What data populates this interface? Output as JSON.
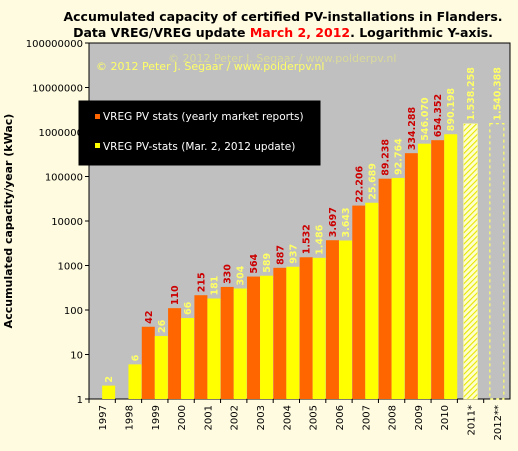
{
  "chart_data": {
    "type": "bar",
    "title_line1": "Accumulated  capacity of certified PV-installations  in Flanders.",
    "title_line2_prefix": "Data VREG/VREG update ",
    "title_line2_highlight": "March 2, 2012",
    "title_line2_suffix": ". Logarithmic  Y-axis.",
    "ylabel": "Accumulated capacity/year (kWac)",
    "yscale": "log",
    "ylim": [
      1,
      100000000
    ],
    "yticks": [
      {
        "value": 1,
        "label": "1"
      },
      {
        "value": 10,
        "label": "10"
      },
      {
        "value": 100,
        "label": "100"
      },
      {
        "value": 1000,
        "label": "1000"
      },
      {
        "value": 10000,
        "label": "10000"
      },
      {
        "value": 100000,
        "label": "100000"
      },
      {
        "value": 1000000,
        "label": "1000000"
      },
      {
        "value": 10000000,
        "label": "10000000"
      },
      {
        "value": 100000000,
        "label": "100000000"
      }
    ],
    "categories": [
      "1997",
      "1998",
      "1999",
      "2000",
      "2001",
      "2002",
      "2003",
      "2004",
      "2005",
      "2006",
      "2007",
      "2008",
      "2009",
      "2010",
      "2011*",
      "2012**"
    ],
    "series": [
      {
        "name": "VREG PV stats (yearly market reports)",
        "color": "#ff6600",
        "values": [
          null,
          null,
          42,
          110,
          215,
          330,
          564,
          887,
          1532,
          3697,
          22206,
          89238,
          334288,
          654352,
          null,
          null
        ],
        "labels": [
          "",
          "",
          "42",
          "110",
          "215",
          "330",
          "564",
          "887",
          "1.532",
          "3.697",
          "22.206",
          "89.238",
          "334.288",
          "654.352",
          "",
          ""
        ]
      },
      {
        "name": "VREG PV-stats (Mar. 2, 2012 update)",
        "color": "#ffff00",
        "values": [
          2,
          6,
          26,
          66,
          181,
          304,
          589,
          937,
          1486,
          3643,
          25689,
          92764,
          546070,
          890198,
          null,
          null
        ],
        "labels": [
          "2",
          "6",
          "26",
          "66",
          "181",
          "304",
          "589",
          "937",
          "1.486",
          "3.643",
          "25.689",
          "92.764",
          "546.070",
          "890.198",
          "",
          ""
        ]
      }
    ],
    "projections": [
      {
        "category": "2011*",
        "value": 1538258,
        "label": "1.538.258",
        "style": "hatched"
      },
      {
        "category": "2012**",
        "value": 1540388,
        "label": "1.540.388",
        "style": "dashed-outline"
      }
    ],
    "watermark": "© 2012 Peter J. Segaar / www.polderpv.nl",
    "legend_position": "upper-left",
    "grid": false,
    "colors": {
      "plot_bg": "#c0c0c0",
      "page_bg": "#fffbe0",
      "highlight": "#ff0000",
      "label_dark": "#cc0000",
      "label_light": "#ffff66"
    }
  }
}
